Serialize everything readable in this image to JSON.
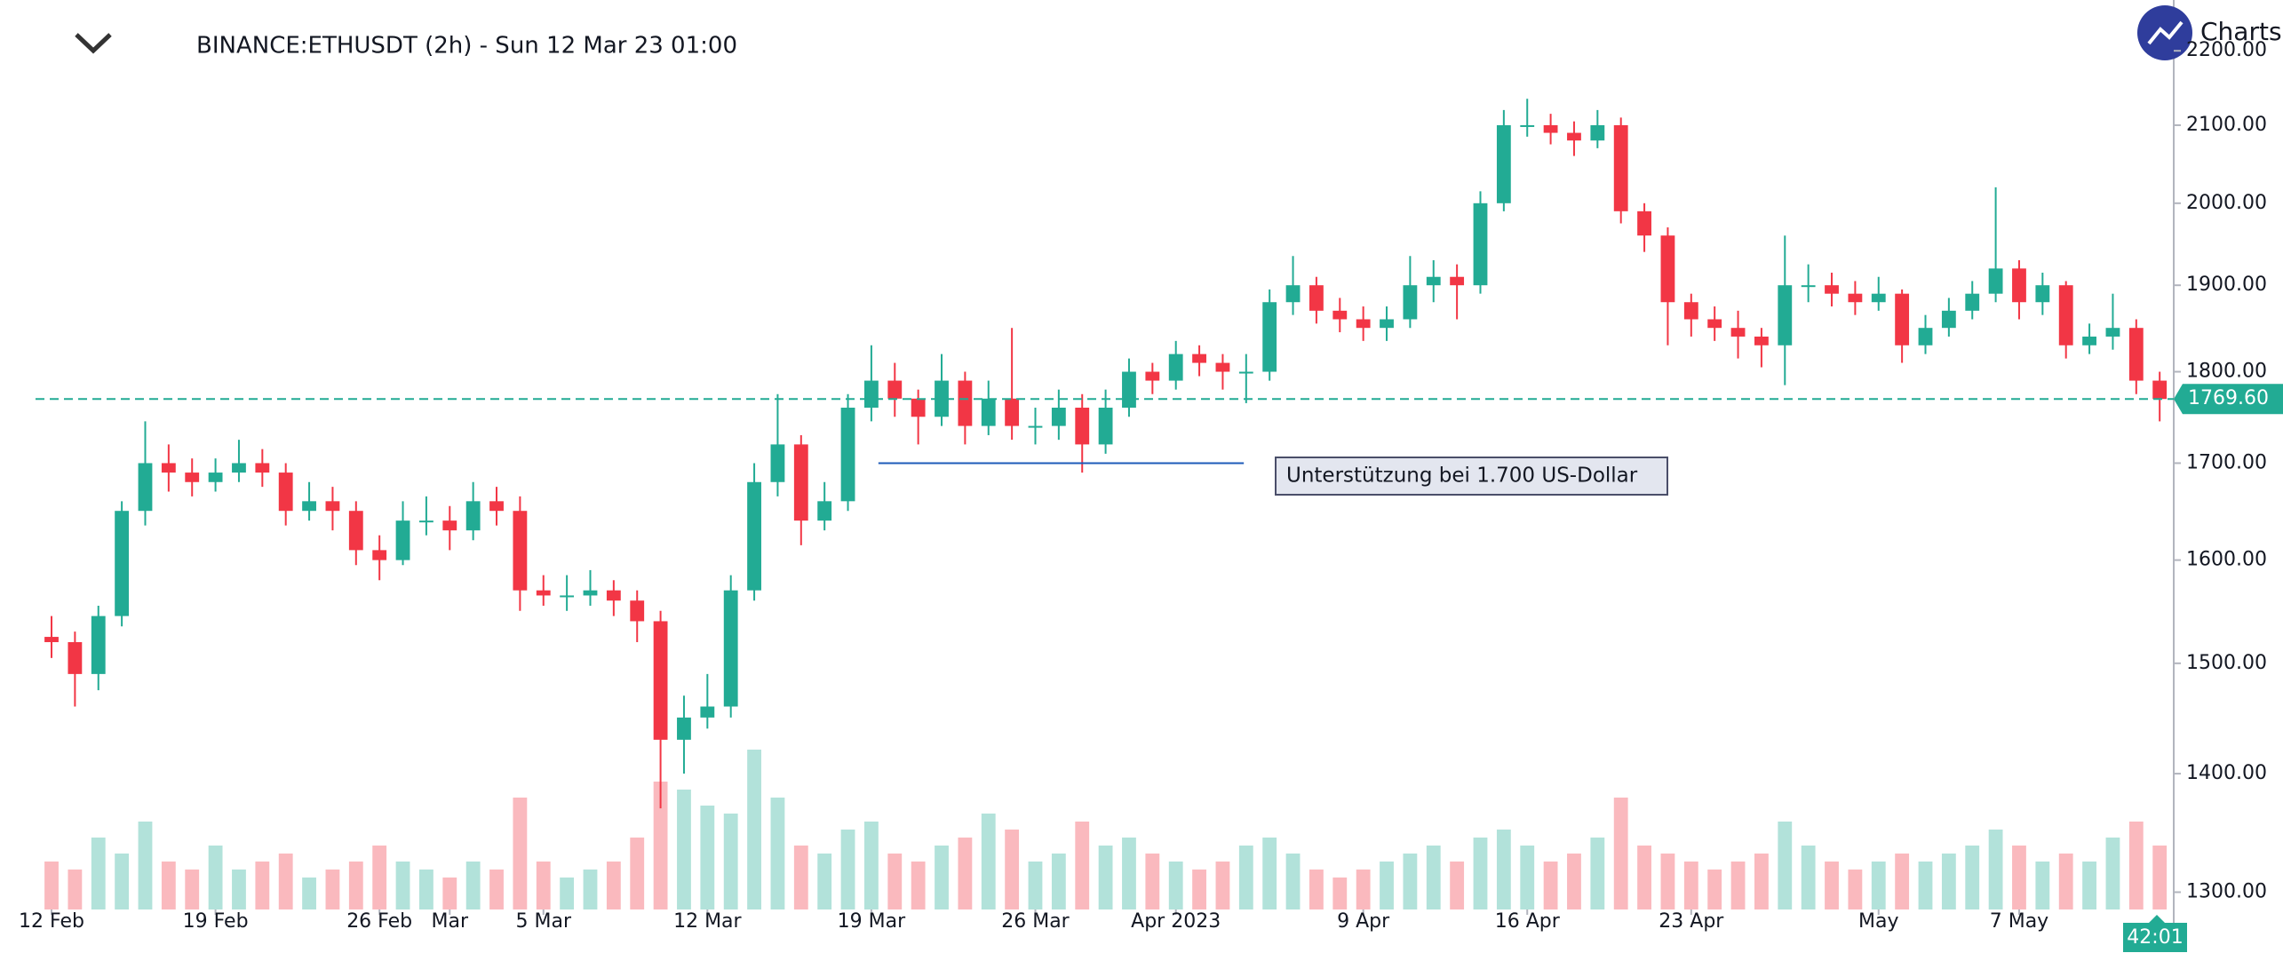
{
  "chart_data": {
    "type": "candlestick",
    "title": "BINANCE:ETHUSDT (2h) - Sun 12 Mar 23 01:00",
    "brand": "Charts",
    "countdown": "42:01",
    "log_scale": true,
    "up_color": "#22ab94",
    "down_color": "#f23645",
    "xlim": [
      -2.2,
      90.6
    ],
    "ylim": [
      1286,
      2271
    ],
    "yticks": [
      {
        "value": 1300,
        "label": "1300.00"
      },
      {
        "value": 1400,
        "label": "1400.00"
      },
      {
        "value": 1500,
        "label": "1500.00"
      },
      {
        "value": 1600,
        "label": "1600.00"
      },
      {
        "value": 1700,
        "label": "1700.00"
      },
      {
        "value": 1800,
        "label": "1800.00"
      },
      {
        "value": 1900,
        "label": "1900.00"
      },
      {
        "value": 2000,
        "label": "2000.00"
      },
      {
        "value": 2100,
        "label": "2100.00"
      },
      {
        "value": 2200,
        "label": "2200.00"
      }
    ],
    "xticks": [
      {
        "value": 0,
        "label": "12 Feb"
      },
      {
        "value": 7,
        "label": "19 Feb"
      },
      {
        "value": 14,
        "label": "26 Feb"
      },
      {
        "value": 17,
        "label": "Mar"
      },
      {
        "value": 21,
        "label": "5 Mar"
      },
      {
        "value": 28,
        "label": "12 Mar"
      },
      {
        "value": 35,
        "label": "19 Mar"
      },
      {
        "value": 42,
        "label": "26 Mar"
      },
      {
        "value": 48,
        "label": "Apr 2023"
      },
      {
        "value": 56,
        "label": "9 Apr"
      },
      {
        "value": 63,
        "label": "16 Apr"
      },
      {
        "value": 70,
        "label": "23 Apr"
      },
      {
        "value": 78,
        "label": "May"
      },
      {
        "value": 84,
        "label": "7 May"
      }
    ],
    "last_price": {
      "value": 1769.6,
      "label": "1769.60"
    },
    "support": {
      "value": 1700,
      "from": 35.3,
      "to": 50.9,
      "label": "Unterstützung bei 1.700 US-Dollar"
    },
    "open": [
      1525,
      1520,
      1490,
      1545,
      1650,
      1700,
      1690,
      1680,
      1690,
      1700,
      1690,
      1650,
      1660,
      1650,
      1610,
      1600,
      1640,
      1640,
      1630,
      1660,
      1650,
      1570,
      1565,
      1565,
      1570,
      1560,
      1540,
      1430,
      1450,
      1460,
      1570,
      1680,
      1720,
      1640,
      1660,
      1760,
      1790,
      1770,
      1750,
      1790,
      1740,
      1770,
      1740,
      1740,
      1760,
      1720,
      1760,
      1800,
      1790,
      1820,
      1810,
      1800,
      1800,
      1880,
      1900,
      1870,
      1860,
      1850,
      1860,
      1900,
      1910,
      1900,
      2000,
      2100,
      2100,
      2090,
      2080,
      2100,
      1990,
      1960,
      1880,
      1860,
      1850,
      1840,
      1830,
      1900,
      1900,
      1890,
      1880,
      1890,
      1830,
      1850,
      1870,
      1890,
      1920,
      1880,
      1900,
      1830,
      1840,
      1850,
      1790
    ],
    "high": [
      1545,
      1530,
      1555,
      1660,
      1745,
      1720,
      1705,
      1705,
      1725,
      1715,
      1700,
      1680,
      1675,
      1660,
      1625,
      1660,
      1665,
      1655,
      1680,
      1675,
      1665,
      1585,
      1585,
      1590,
      1580,
      1570,
      1550,
      1470,
      1490,
      1585,
      1700,
      1775,
      1730,
      1680,
      1775,
      1830,
      1810,
      1780,
      1820,
      1800,
      1790,
      1850,
      1760,
      1780,
      1775,
      1780,
      1815,
      1810,
      1835,
      1830,
      1820,
      1820,
      1895,
      1935,
      1910,
      1885,
      1875,
      1875,
      1935,
      1930,
      1925,
      2015,
      2120,
      2135,
      2115,
      2105,
      2120,
      2110,
      2000,
      1970,
      1890,
      1875,
      1870,
      1850,
      1960,
      1925,
      1915,
      1905,
      1910,
      1895,
      1865,
      1885,
      1905,
      2020,
      1930,
      1915,
      1905,
      1855,
      1890,
      1860,
      1800
    ],
    "low": [
      1505,
      1460,
      1475,
      1535,
      1635,
      1670,
      1665,
      1670,
      1680,
      1675,
      1635,
      1640,
      1630,
      1595,
      1580,
      1595,
      1625,
      1610,
      1620,
      1635,
      1550,
      1555,
      1550,
      1555,
      1545,
      1520,
      1370,
      1400,
      1440,
      1450,
      1560,
      1665,
      1615,
      1630,
      1650,
      1745,
      1750,
      1720,
      1740,
      1720,
      1730,
      1725,
      1720,
      1725,
      1690,
      1710,
      1750,
      1775,
      1780,
      1795,
      1780,
      1765,
      1790,
      1865,
      1855,
      1845,
      1835,
      1835,
      1850,
      1880,
      1860,
      1890,
      1990,
      2085,
      2075,
      2060,
      2070,
      1975,
      1940,
      1830,
      1840,
      1835,
      1815,
      1805,
      1785,
      1880,
      1875,
      1865,
      1870,
      1810,
      1820,
      1840,
      1860,
      1880,
      1860,
      1865,
      1815,
      1820,
      1825,
      1775,
      1745
    ],
    "close": [
      1520,
      1490,
      1545,
      1650,
      1700,
      1690,
      1680,
      1690,
      1700,
      1690,
      1650,
      1660,
      1650,
      1610,
      1600,
      1640,
      1640,
      1630,
      1660,
      1650,
      1570,
      1565,
      1565,
      1570,
      1560,
      1540,
      1430,
      1450,
      1460,
      1570,
      1680,
      1720,
      1640,
      1660,
      1760,
      1790,
      1770,
      1750,
      1790,
      1740,
      1770,
      1740,
      1740,
      1760,
      1720,
      1760,
      1800,
      1790,
      1820,
      1810,
      1800,
      1800,
      1880,
      1900,
      1870,
      1860,
      1850,
      1860,
      1900,
      1910,
      1900,
      2000,
      2100,
      2100,
      2090,
      2080,
      2100,
      1990,
      1960,
      1880,
      1860,
      1850,
      1840,
      1830,
      1900,
      1900,
      1890,
      1880,
      1890,
      1830,
      1850,
      1870,
      1890,
      1920,
      1880,
      1900,
      1830,
      1840,
      1850,
      1790,
      1769.6
    ],
    "volume": [
      30,
      25,
      45,
      35,
      55,
      30,
      25,
      40,
      25,
      30,
      35,
      20,
      25,
      30,
      40,
      30,
      25,
      20,
      30,
      25,
      70,
      30,
      20,
      25,
      30,
      45,
      80,
      75,
      65,
      60,
      100,
      70,
      40,
      35,
      50,
      55,
      35,
      30,
      40,
      45,
      60,
      50,
      30,
      35,
      55,
      40,
      45,
      35,
      30,
      25,
      30,
      40,
      45,
      35,
      25,
      20,
      25,
      30,
      35,
      40,
      30,
      45,
      50,
      40,
      30,
      35,
      45,
      70,
      40,
      35,
      30,
      25,
      30,
      35,
      55,
      40,
      30,
      25,
      30,
      35,
      30,
      35,
      40,
      50,
      40,
      30,
      35,
      30,
      45,
      55,
      40
    ]
  }
}
